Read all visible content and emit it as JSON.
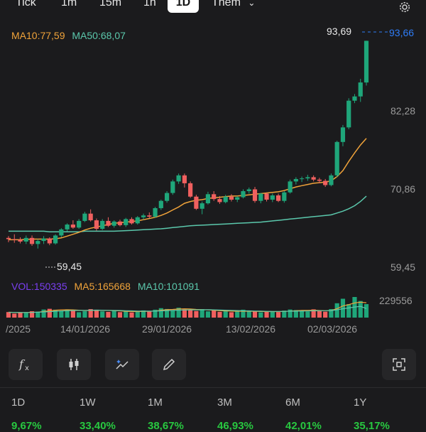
{
  "timeframes": [
    "Tick",
    "1m",
    "15m",
    "1h",
    "1D"
  ],
  "more_label": "Thêm",
  "active_timeframe": "1D",
  "legend": {
    "ma10": "MA10:77,59",
    "ma50": "MA50:68,07",
    "vol": "VOL:150335",
    "vma5": "MA5:165668",
    "vma10": "MA10:101091"
  },
  "colors": {
    "up": "#1fa67a",
    "down": "#f0605f",
    "ma10": "#f0a33a",
    "ma50": "#5bc8ac",
    "accent": "#2f7cf6",
    "vol_label": "#7b3ff2"
  },
  "price_axis": {
    "labels": [
      "93,66",
      "82,28",
      "70,86",
      "59,45"
    ],
    "current_price": "93,66"
  },
  "annotations": {
    "high": "93,69",
    "low": "59,45"
  },
  "volume_axis": {
    "label": "229556"
  },
  "dates": [
    "/2025",
    "14/01/2026",
    "29/01/2026",
    "13/02/2026",
    "02/03/2026"
  ],
  "tools": [
    "fx-icon",
    "candle-icon",
    "magic-icon",
    "pencil-icon",
    "screenshot-icon"
  ],
  "periods": [
    {
      "label": "1D",
      "change": "9,67%"
    },
    {
      "label": "1W",
      "change": "33,40%"
    },
    {
      "label": "1M",
      "change": "38,67%"
    },
    {
      "label": "3M",
      "change": "46,93%"
    },
    {
      "label": "6M",
      "change": "42,01%"
    },
    {
      "label": "1Y",
      "change": "35,17%"
    }
  ],
  "chart_data": {
    "type": "candlestick",
    "ylim": [
      56.5,
      95
    ],
    "candles": [
      [
        61.2,
        61.5,
        60.5,
        61.0
      ],
      [
        61.0,
        61.8,
        60.4,
        60.9
      ],
      [
        60.9,
        61.3,
        60.3,
        60.6
      ],
      [
        60.6,
        61.6,
        60.2,
        61.2
      ],
      [
        61.2,
        61.6,
        59.9,
        60.2
      ],
      [
        60.2,
        61.0,
        59.45,
        60.7
      ],
      [
        60.7,
        61.5,
        60.2,
        61.1
      ],
      [
        61.1,
        61.3,
        60.0,
        60.3
      ],
      [
        60.3,
        61.8,
        60.1,
        61.6
      ],
      [
        61.6,
        62.8,
        61.3,
        62.6
      ],
      [
        62.6,
        63.6,
        62.3,
        63.4
      ],
      [
        63.4,
        64.1,
        62.7,
        62.9
      ],
      [
        62.9,
        64.3,
        62.7,
        64.0
      ],
      [
        64.0,
        65.5,
        63.8,
        65.2
      ],
      [
        65.2,
        65.9,
        63.9,
        64.1
      ],
      [
        64.1,
        64.4,
        62.4,
        62.7
      ],
      [
        62.7,
        64.3,
        62.5,
        64.0
      ],
      [
        64.0,
        64.6,
        63.0,
        63.2
      ],
      [
        63.2,
        64.1,
        62.9,
        63.9
      ],
      [
        63.9,
        64.2,
        63.1,
        63.3
      ],
      [
        63.3,
        64.5,
        63.0,
        64.3
      ],
      [
        64.3,
        64.6,
        63.4,
        63.6
      ],
      [
        63.6,
        64.8,
        63.4,
        64.6
      ],
      [
        64.6,
        65.2,
        64.2,
        64.9
      ],
      [
        64.9,
        65.4,
        64.5,
        64.7
      ],
      [
        64.7,
        66.3,
        64.5,
        66.1
      ],
      [
        66.1,
        67.5,
        65.8,
        67.3
      ],
      [
        67.3,
        68.9,
        67.0,
        68.6
      ],
      [
        68.6,
        70.8,
        68.3,
        70.5
      ],
      [
        70.5,
        71.8,
        70.1,
        71.5
      ],
      [
        71.5,
        71.8,
        69.5,
        70.2
      ],
      [
        70.2,
        70.5,
        67.8,
        68.0
      ],
      [
        68.0,
        68.3,
        65.8,
        66.0
      ],
      [
        66.0,
        67.2,
        65.1,
        66.9
      ],
      [
        66.9,
        68.8,
        66.7,
        68.4
      ],
      [
        68.4,
        68.9,
        67.3,
        67.6
      ],
      [
        67.6,
        68.1,
        66.8,
        67.1
      ],
      [
        67.1,
        68.3,
        66.9,
        68.0
      ],
      [
        68.0,
        68.4,
        67.2,
        67.5
      ],
      [
        67.5,
        68.1,
        67.1,
        67.9
      ],
      [
        67.9,
        69.2,
        67.7,
        68.9
      ],
      [
        68.9,
        69.5,
        68.5,
        69.2
      ],
      [
        69.2,
        69.6,
        67.0,
        67.3
      ],
      [
        67.3,
        68.6,
        66.9,
        68.5
      ],
      [
        68.5,
        68.7,
        67.2,
        67.5
      ],
      [
        67.5,
        68.5,
        67.1,
        68.2
      ],
      [
        68.2,
        68.5,
        67.1,
        67.3
      ],
      [
        67.3,
        68.9,
        67.0,
        68.7
      ],
      [
        68.7,
        70.8,
        68.5,
        70.5
      ],
      [
        70.5,
        71.2,
        70.0,
        70.9
      ],
      [
        70.9,
        71.3,
        70.4,
        71.0
      ],
      [
        71.0,
        71.6,
        70.6,
        71.2
      ],
      [
        71.2,
        71.5,
        70.5,
        70.8
      ],
      [
        70.8,
        71.1,
        70.2,
        70.6
      ],
      [
        70.6,
        70.9,
        69.6,
        69.9
      ],
      [
        69.9,
        71.8,
        69.7,
        71.5
      ],
      [
        71.5,
        77.2,
        71.2,
        77.0
      ],
      [
        77.0,
        79.8,
        76.3,
        79.4
      ],
      [
        79.4,
        84.2,
        79.1,
        83.8
      ],
      [
        83.8,
        84.9,
        83.4,
        84.5
      ],
      [
        84.5,
        87.4,
        83.6,
        86.8
      ],
      [
        86.8,
        93.69,
        86.3,
        93.66
      ]
    ],
    "ma10": [
      60.9,
      60.9,
      60.9,
      60.95,
      61.0,
      61.0,
      61.0,
      61.0,
      61.05,
      61.2,
      61.5,
      61.8,
      62.1,
      62.5,
      62.8,
      63.0,
      63.2,
      63.4,
      63.6,
      63.7,
      63.8,
      63.9,
      64.0,
      64.2,
      64.4,
      64.6,
      64.9,
      65.3,
      65.8,
      66.3,
      66.9,
      67.2,
      67.4,
      67.5,
      67.7,
      67.8,
      67.9,
      68.0,
      68.1,
      68.1,
      68.2,
      68.3,
      68.4,
      68.5,
      68.6,
      68.7,
      68.8,
      69.0,
      69.3,
      69.6,
      69.8,
      70.0,
      70.2,
      70.3,
      70.4,
      70.6,
      71.3,
      72.3,
      73.8,
      75.2,
      76.5,
      77.59
    ],
    "ma50": [
      62.3,
      62.3,
      62.3,
      62.3,
      62.3,
      62.3,
      62.3,
      62.2,
      62.2,
      62.2,
      62.2,
      62.2,
      62.2,
      62.3,
      62.3,
      62.3,
      62.3,
      62.3,
      62.3,
      62.35,
      62.4,
      62.45,
      62.5,
      62.55,
      62.6,
      62.65,
      62.7,
      62.8,
      62.9,
      63.0,
      63.1,
      63.2,
      63.25,
      63.3,
      63.35,
      63.4,
      63.45,
      63.5,
      63.55,
      63.6,
      63.65,
      63.7,
      63.75,
      63.8,
      63.9,
      64.0,
      64.1,
      64.2,
      64.3,
      64.4,
      64.5,
      64.6,
      64.7,
      64.8,
      64.9,
      65.0,
      65.3,
      65.6,
      66.0,
      66.5,
      67.2,
      68.07
    ],
    "volume": [
      62000,
      45000,
      58000,
      52000,
      71000,
      66000,
      90000,
      98000,
      88000,
      76000,
      92000,
      84000,
      60000,
      72000,
      95000,
      88000,
      70000,
      64000,
      78000,
      61000,
      69000,
      58000,
      73000,
      80000,
      67000,
      88000,
      105000,
      96000,
      82000,
      110000,
      92000,
      86000,
      74000,
      95000,
      70000,
      82000,
      64000,
      71000,
      60000,
      76000,
      88000,
      69000,
      73000,
      59000,
      66000,
      71000,
      62000,
      78000,
      90000,
      84000,
      76000,
      68000,
      92000,
      73000,
      66000,
      95000,
      160000,
      210000,
      150000,
      229556,
      185000,
      150335
    ],
    "vma5": [
      60000,
      58000,
      56000,
      57000,
      59000,
      61000,
      68000,
      75000,
      82000,
      86000,
      87000,
      86000,
      82000,
      79000,
      80000,
      82000,
      81000,
      80000,
      78000,
      75000,
      70000,
      68000,
      67000,
      69000,
      70000,
      73000,
      82000,
      88000,
      91000,
      96000,
      98000,
      96000,
      91000,
      89000,
      86000,
      82000,
      77000,
      75000,
      72000,
      71000,
      72000,
      71000,
      70000,
      68000,
      67000,
      67000,
      67000,
      69000,
      73000,
      76000,
      80000,
      80000,
      82000,
      79000,
      77000,
      78000,
      99000,
      130000,
      145000,
      163000,
      172000,
      165668
    ],
    "vma10": [
      58000,
      58000,
      57000,
      57000,
      58000,
      60000,
      63000,
      66000,
      70000,
      74000,
      77000,
      79000,
      80000,
      81000,
      82000,
      83000,
      82000,
      81000,
      80000,
      79000,
      77000,
      75000,
      73000,
      72000,
      72000,
      72000,
      75000,
      78000,
      80000,
      83000,
      85000,
      86000,
      86000,
      87000,
      88000,
      86000,
      84000,
      82000,
      80000,
      78000,
      76000,
      75000,
      73000,
      72000,
      70000,
      69000,
      69000,
      70000,
      71000,
      72000,
      73000,
      74000,
      76000,
      77000,
      77000,
      78000,
      87000,
      99000,
      108000,
      118000,
      125000,
      101091
    ]
  }
}
